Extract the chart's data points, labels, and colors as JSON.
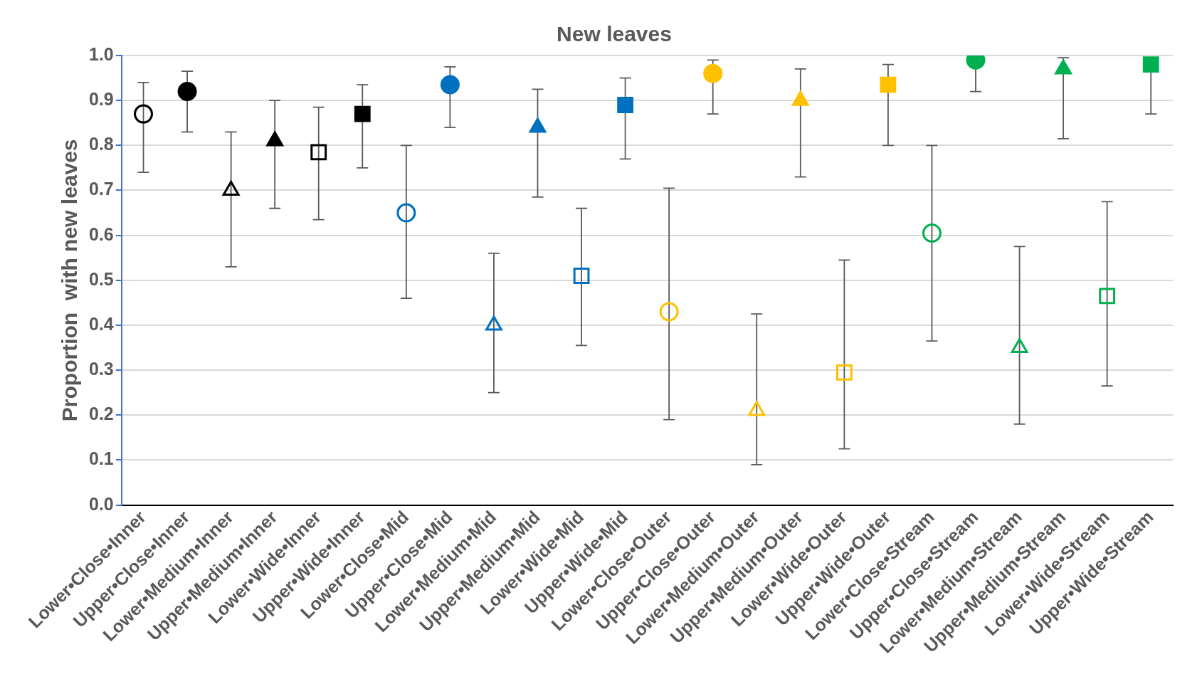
{
  "chart_data": {
    "type": "scatter",
    "title": "New leaves",
    "ylabel": "Proportion  with new leaves",
    "categories": [
      "Lower•Close•Inner",
      "Upper•Close•Inner",
      "Lower•Medium•Inner",
      "Upper•Medium•Inner",
      "Lower•Wide•Inner",
      "Upper•Wide•Inner",
      "Lower•Close•Mid",
      "Upper•Close•Mid",
      "Lower•Medium•Mid",
      "Upper•Medium•Mid",
      "Lower•Wide•Mid",
      "Upper•Wide•Mid",
      "Lower•Close•Outer",
      "Upper•Close•Outer",
      "Lower•Medium•Outer",
      "Upper•Medium•Outer",
      "Lower•Wide•Outer",
      "Upper•Wide•Outer",
      "Lower•Close•Stream",
      "Upper•Close•Stream",
      "Lower•Medium•Stream",
      "Upper•Medium•Stream",
      "Lower•Wide•Stream",
      "Upper•Wide•Stream"
    ],
    "ylim": [
      0,
      1
    ],
    "yticks": [
      {
        "value": 0,
        "label": "0.0"
      },
      {
        "value": 0.1,
        "label": "0.1"
      },
      {
        "value": 0.2,
        "label": "0.2"
      },
      {
        "value": 0.3,
        "label": "0.3"
      },
      {
        "value": 0.4,
        "label": "0.4"
      },
      {
        "value": 0.5,
        "label": "0.5"
      },
      {
        "value": 0.6,
        "label": "0.6"
      },
      {
        "value": 0.7,
        "label": "0.7"
      },
      {
        "value": 0.8,
        "label": "0.8"
      },
      {
        "value": 0.9,
        "label": "0.9"
      },
      {
        "value": 1,
        "label": "1.0"
      }
    ],
    "grid": "y",
    "legend": false,
    "series": [
      {
        "marker": "circle-open",
        "x": [
          "Lower•Close•Inner",
          "Lower•Close•Mid",
          "Lower•Close•Outer",
          "Lower•Close•Stream"
        ],
        "colors": [
          "#000000",
          "#0070c0",
          "#ffc000",
          "#00b050"
        ],
        "values": [
          0.87,
          0.65,
          0.43,
          0.605
        ],
        "errors": [
          [
            0.74,
            0.94
          ],
          [
            0.46,
            0.8
          ],
          [
            0.19,
            0.705
          ],
          [
            0.365,
            0.8
          ]
        ]
      },
      {
        "marker": "circle",
        "x": [
          "Upper•Close•Inner",
          "Upper•Close•Mid",
          "Upper•Close•Outer",
          "Upper•Close•Stream"
        ],
        "colors": [
          "#000000",
          "#0070c0",
          "#ffc000",
          "#00b050"
        ],
        "values": [
          0.92,
          0.935,
          0.96,
          0.99
        ],
        "errors": [
          [
            0.83,
            0.965
          ],
          [
            0.84,
            0.975
          ],
          [
            0.87,
            0.99
          ],
          [
            0.92,
            0.99
          ]
        ]
      },
      {
        "marker": "triangle-open",
        "x": [
          "Lower•Medium•Inner",
          "Lower•Medium•Mid",
          "Lower•Medium•Outer",
          "Lower•Medium•Stream"
        ],
        "colors": [
          "#000000",
          "#0070c0",
          "#ffc000",
          "#00b050"
        ],
        "values": [
          0.7,
          0.4,
          0.21,
          0.35
        ],
        "errors": [
          [
            0.53,
            0.83
          ],
          [
            0.25,
            0.56
          ],
          [
            0.09,
            0.425
          ],
          [
            0.18,
            0.575
          ]
        ]
      },
      {
        "marker": "triangle",
        "x": [
          "Upper•Medium•Inner",
          "Upper•Medium•Mid",
          "Upper•Medium•Outer",
          "Upper•Medium•Stream"
        ],
        "colors": [
          "#000000",
          "#0070c0",
          "#ffc000",
          "#00b050"
        ],
        "values": [
          0.81,
          0.84,
          0.9,
          0.97
        ],
        "errors": [
          [
            0.66,
            0.9
          ],
          [
            0.685,
            0.925
          ],
          [
            0.73,
            0.97
          ],
          [
            0.815,
            0.995
          ]
        ]
      },
      {
        "marker": "square-open",
        "x": [
          "Lower•Wide•Inner",
          "Lower•Wide•Mid",
          "Lower•Wide•Outer",
          "Lower•Wide•Stream"
        ],
        "colors": [
          "#000000",
          "#0070c0",
          "#ffc000",
          "#00b050"
        ],
        "values": [
          0.785,
          0.51,
          0.295,
          0.465
        ],
        "errors": [
          [
            0.635,
            0.885
          ],
          [
            0.355,
            0.66
          ],
          [
            0.125,
            0.545
          ],
          [
            0.265,
            0.675
          ]
        ]
      },
      {
        "marker": "square",
        "x": [
          "Upper•Wide•Inner",
          "Upper•Wide•Mid",
          "Upper•Wide•Outer",
          "Upper•Wide•Stream"
        ],
        "colors": [
          "#000000",
          "#0070c0",
          "#ffc000",
          "#00b050"
        ],
        "values": [
          0.87,
          0.89,
          0.935,
          0.98
        ],
        "errors": [
          [
            0.75,
            0.935
          ],
          [
            0.77,
            0.95
          ],
          [
            0.8,
            0.98
          ],
          [
            0.87,
            0.98
          ]
        ]
      }
    ]
  }
}
